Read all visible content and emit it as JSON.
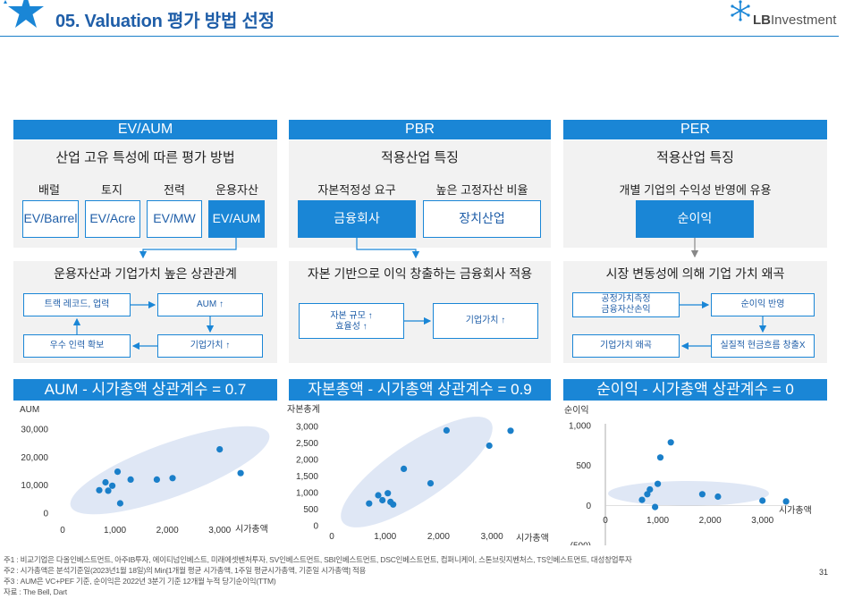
{
  "header": {
    "title": "05. Valuation 평가 방법 선정",
    "logo_bold": "LB",
    "logo_rest": "Investment"
  },
  "panels": [
    {
      "key": "ev",
      "head": "EV/AUM",
      "subtitle": "산업 고유 특성에 따른 평가 방법",
      "labels": [
        "배럴",
        "토지",
        "전력",
        "운용자산"
      ],
      "boxes": [
        "EV/Barrel",
        "EV/Acre",
        "EV/MW",
        "EV/AUM"
      ],
      "band": "운용자산과 기업가치 높은 상관관계",
      "flow": [
        "트랙 레코드, 업력",
        "AUM ↑",
        "우수 인력 확보",
        "기업가치 ↑"
      ],
      "corr": "AUM - 시가총액 상관계수 = 0.7"
    },
    {
      "key": "pbr",
      "head": "PBR",
      "subtitle": "적용산업 특징",
      "labels": [
        "자본적정성 요구",
        "높은 고정자산 비율"
      ],
      "boxes": [
        "금융회사",
        "장치산업"
      ],
      "band": "자본 기반으로 이익 창출하는 금융회사 적용",
      "flow": [
        "자본 규모 ↑",
        "효율성 ↑",
        "기업가치 ↑"
      ],
      "corr": "자본총액 - 시가총액 상관계수 = 0.9"
    },
    {
      "key": "per",
      "head": "PER",
      "subtitle": "적용산업 특징",
      "labels": [
        "개별 기업의 수익성 반영에 유용"
      ],
      "boxes": [
        "순이익"
      ],
      "band": "시장 변동성에 의해 기업 가치 왜곡",
      "flow": [
        "공정가치측정",
        "금융자산손익",
        "순이익 반영",
        "기업가치 왜곡",
        "실질적 현금흐름 창출X"
      ],
      "corr": "순이익 - 시가총액 상관계수 = 0"
    }
  ],
  "chart_data": [
    {
      "type": "scatter",
      "title": "",
      "xlabel": "시가총액",
      "ylabel": "AUM",
      "xlim": [
        0,
        3500
      ],
      "ylim": [
        0,
        30000
      ],
      "x_ticks": [
        "0",
        "1,000",
        "2,000",
        "3,000"
      ],
      "y_ticks": [
        "0",
        "10,000",
        "20,000",
        "30,000"
      ],
      "color": "#1a7fc9",
      "points": [
        [
          700,
          8200
        ],
        [
          820,
          11000
        ],
        [
          870,
          8000
        ],
        [
          950,
          9800
        ],
        [
          1050,
          14800
        ],
        [
          1100,
          3500
        ],
        [
          1300,
          12000
        ],
        [
          1800,
          12000
        ],
        [
          2100,
          12500
        ],
        [
          3000,
          22800
        ],
        [
          3400,
          14300
        ]
      ]
    },
    {
      "type": "scatter",
      "title": "",
      "xlabel": "시가총액",
      "ylabel": "자본총계",
      "xlim": [
        0,
        3500
      ],
      "ylim": [
        0,
        3000
      ],
      "x_ticks": [
        "0",
        "1,000",
        "2,000",
        "3,000"
      ],
      "y_ticks": [
        "0",
        "500",
        "1,000",
        "1,500",
        "2,000",
        "2,500",
        "3,000"
      ],
      "color": "#1a7fc9",
      "points": [
        [
          700,
          670
        ],
        [
          870,
          920
        ],
        [
          950,
          770
        ],
        [
          1050,
          980
        ],
        [
          1100,
          720
        ],
        [
          1150,
          640
        ],
        [
          1350,
          1720
        ],
        [
          1850,
          1280
        ],
        [
          2150,
          2880
        ],
        [
          2950,
          2420
        ],
        [
          3350,
          2870
        ]
      ]
    },
    {
      "type": "scatter",
      "title": "",
      "xlabel": "시가총액",
      "ylabel": "순이익",
      "xlim": [
        0,
        3500
      ],
      "ylim": [
        -500,
        1000
      ],
      "x_ticks": [
        "0",
        "1,000",
        "2,000",
        "3,000"
      ],
      "y_ticks": [
        "(500)",
        "0",
        "500",
        "1,000"
      ],
      "color": "#1a7fc9",
      "points": [
        [
          700,
          70
        ],
        [
          800,
          140
        ],
        [
          850,
          200
        ],
        [
          950,
          -20
        ],
        [
          1000,
          270
        ],
        [
          1050,
          600
        ],
        [
          1250,
          790
        ],
        [
          1850,
          140
        ],
        [
          2150,
          110
        ],
        [
          3000,
          60
        ],
        [
          3450,
          50
        ]
      ]
    }
  ],
  "footnotes": [
    "주1 : 비교기업은 다올인베스트먼트, 아주IB투자, 에이티넘인베스트, 미래에셋벤처투자, SV인베스트먼트, SBI인베스트먼트, DSC인베스트먼트, 컴퍼니케이, 스톤브릿지벤처스, TS인베스트먼트, 대성창업투자",
    "주2 : 시가총액은 분석기준일(2023년1월 18일)의 Min[1개월 평균 시가총액, 1주일 평균시가총액, 기준일 시가총액] 적용",
    "주3 : AUM은 VC+PEF 기준, 순이익은 2022년 3분기 기준 12개월 누적 당기순이익(TTM)",
    "자료 : The Bell, Dart"
  ],
  "page_number": "31"
}
